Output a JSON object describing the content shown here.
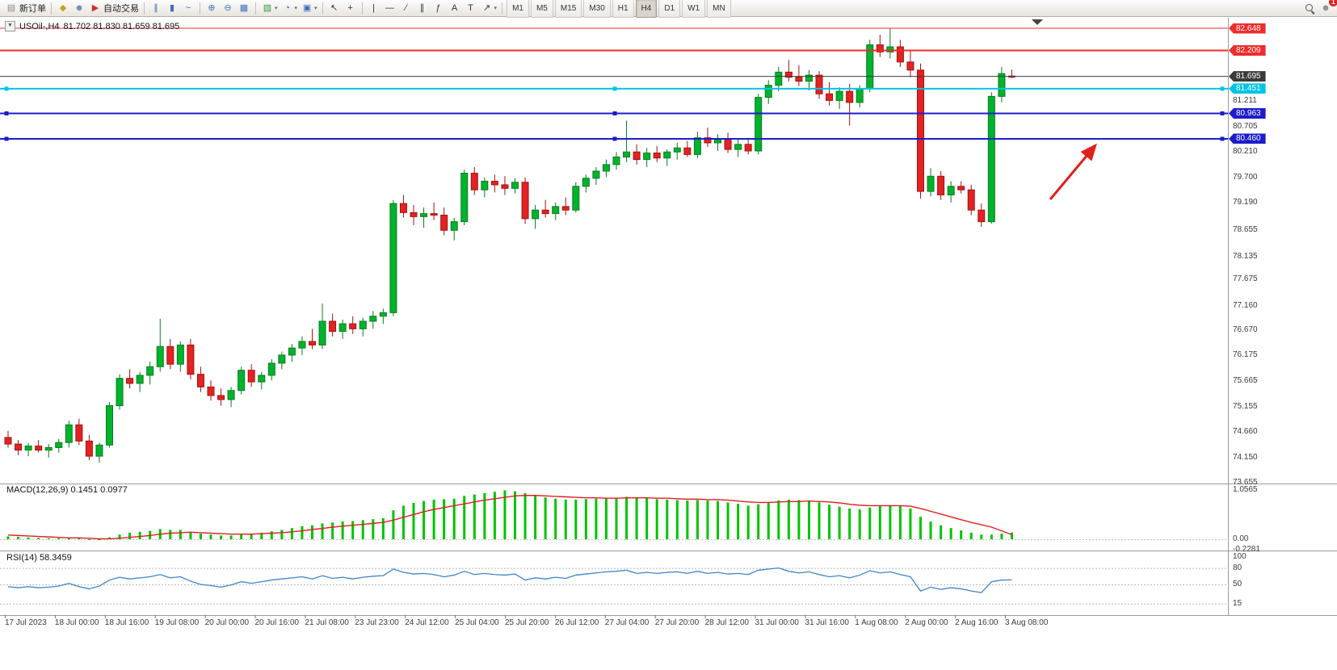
{
  "toolbar": {
    "active_timeframe": "H4",
    "items": [
      {
        "name": "new-order-button",
        "glyph": "▤",
        "color": "#8a8a8a",
        "label": "新订单"
      },
      {
        "sep": true
      },
      {
        "name": "market-watch-icon",
        "glyph": "◆",
        "color": "#c9a227"
      },
      {
        "name": "data-window-icon",
        "glyph": "☻",
        "color": "#6b86b5"
      },
      {
        "name": "auto-trading-button",
        "glyph": "▶",
        "color": "#d22a2a",
        "label": "自动交易"
      },
      {
        "sep": true
      },
      {
        "name": "bar-chart-type-icon",
        "glyph": "∥",
        "color": "#3f6fb5"
      },
      {
        "name": "candlestick-chart-type-icon",
        "glyph": "▮",
        "color": "#3f6fb5"
      },
      {
        "name": "line-chart-type-icon",
        "glyph": "~",
        "color": "#3f6fb5"
      },
      {
        "sep": true
      },
      {
        "name": "zoom-in-icon",
        "glyph": "⊕",
        "color": "#3f6fb5"
      },
      {
        "name": "zoom-out-icon",
        "glyph": "⊖",
        "color": "#3f6fb5"
      },
      {
        "name": "tile-windows-icon",
        "glyph": "▦",
        "color": "#3f6fb5"
      },
      {
        "sep": true
      },
      {
        "name": "new-chart-icon",
        "glyph": "▧",
        "color": "#3a9a3a",
        "caret": true
      },
      {
        "name": "templates-icon",
        "glyph": "◔",
        "color": "#3f6fb5",
        "caret": true
      },
      {
        "name": "picture-icon",
        "glyph": "▣",
        "color": "#3f6fb5",
        "caret": true
      },
      {
        "sep": true
      },
      {
        "name": "cursor-icon",
        "glyph": "↖",
        "color": "#333333"
      },
      {
        "name": "crosshair-icon",
        "glyph": "+",
        "color": "#333333"
      },
      {
        "sep": true
      },
      {
        "name": "vertical-line-icon",
        "glyph": "|",
        "color": "#333333"
      },
      {
        "name": "horizontal-line-icon",
        "glyph": "—",
        "color": "#333333"
      },
      {
        "name": "trendline-icon",
        "glyph": "∕",
        "color": "#333333"
      },
      {
        "name": "equidistant-channel-icon",
        "glyph": "∥",
        "color": "#333333"
      },
      {
        "name": "fibonacci-icon",
        "glyph": "ƒ",
        "color": "#333333"
      },
      {
        "name": "text-icon",
        "glyph": "A",
        "color": "#333333"
      },
      {
        "name": "label-icon",
        "glyph": "T",
        "color": "#333333"
      },
      {
        "name": "arrows-icon",
        "glyph": "↗",
        "color": "#333333",
        "caret": true
      },
      {
        "sep": true
      },
      {
        "name": "timeframe-m1",
        "tf": "M1"
      },
      {
        "name": "timeframe-m5",
        "tf": "M5"
      },
      {
        "name": "timeframe-m15",
        "tf": "M15"
      },
      {
        "name": "timeframe-m30",
        "tf": "M30"
      },
      {
        "name": "timeframe-h1",
        "tf": "H1"
      },
      {
        "name": "timeframe-h4",
        "tf": "H4"
      },
      {
        "name": "timeframe-d1",
        "tf": "D1"
      },
      {
        "name": "timeframe-w1",
        "tf": "W1"
      },
      {
        "name": "timeframe-mn",
        "tf": "MN"
      },
      {
        "spacer": true
      },
      {
        "name": "search-icon",
        "mag": true
      },
      {
        "name": "notifications-icon",
        "glyph": "☻",
        "color": "#8a8a8a",
        "badge": "1"
      }
    ]
  },
  "chart": {
    "collapse_glyph": "▼",
    "title": "USOil-,H4",
    "ohlc": "81.702 81.830 81.659 81.695",
    "macd_label": "MACD(12,26,9) 0.1451 0.0977",
    "rsi_label": "RSI(14) 58.3459"
  },
  "levels": [
    {
      "price": 82.648,
      "color": "#ee2c2c",
      "width": 1
    },
    {
      "price": 82.209,
      "color": "#ee2c2c",
      "width": 2
    },
    {
      "price": 81.695,
      "color": "#3a3a3a",
      "width": 1
    },
    {
      "price": 81.451,
      "color": "#00c4e6",
      "width": 2,
      "handles": true
    },
    {
      "price": 80.963,
      "color": "#1c1ccc",
      "width": 2,
      "handles": true
    },
    {
      "price": 80.46,
      "color": "#1c1ccc",
      "width": 2,
      "handles": true
    }
  ],
  "price_axis": {
    "ticks": [
      "81.211",
      "80.705",
      "80.210",
      "79.700",
      "79.190",
      "78.655",
      "78.135",
      "77.675",
      "77.160",
      "76.670",
      "76.175",
      "75.665",
      "75.155",
      "74.660",
      "74.150",
      "73.655"
    ]
  },
  "chart_data": {
    "type": "candlestick",
    "symbol": "USOil-",
    "timeframe": "H4",
    "last_candle": {
      "open": 81.702,
      "high": 81.83,
      "low": 81.659,
      "close": 81.695
    },
    "x_labels": [
      "17 Jul 2023",
      "18 Jul 00:00",
      "18 Jul 16:00",
      "19 Jul 08:00",
      "20 Jul 00:00",
      "20 Jul 16:00",
      "21 Jul 08:00",
      "23 Jul 23:00",
      "24 Jul 12:00",
      "25 Jul 04:00",
      "25 Jul 20:00",
      "26 Jul 12:00",
      "27 Jul 04:00",
      "27 Jul 20:00",
      "28 Jul 12:00",
      "31 Jul 00:00",
      "31 Jul 16:00",
      "1 Aug 08:00",
      "2 Aug 00:00",
      "2 Aug 16:00",
      "3 Aug 08:00"
    ],
    "candles": [
      [
        74.55,
        74.68,
        74.35,
        74.42
      ],
      [
        74.42,
        74.5,
        74.2,
        74.3
      ],
      [
        74.3,
        74.44,
        74.18,
        74.38
      ],
      [
        74.38,
        74.5,
        74.25,
        74.3
      ],
      [
        74.3,
        74.42,
        74.15,
        74.35
      ],
      [
        74.35,
        74.52,
        74.25,
        74.45
      ],
      [
        74.45,
        74.88,
        74.35,
        74.8
      ],
      [
        74.8,
        74.92,
        74.4,
        74.48
      ],
      [
        74.48,
        74.6,
        74.1,
        74.18
      ],
      [
        74.18,
        74.45,
        74.05,
        74.4
      ],
      [
        74.4,
        75.25,
        74.35,
        75.18
      ],
      [
        75.18,
        75.8,
        75.1,
        75.72
      ],
      [
        75.72,
        75.9,
        75.52,
        75.62
      ],
      [
        75.62,
        75.85,
        75.45,
        75.78
      ],
      [
        75.78,
        76.05,
        75.6,
        75.95
      ],
      [
        75.95,
        76.9,
        75.85,
        76.35
      ],
      [
        76.35,
        76.5,
        75.9,
        76.0
      ],
      [
        76.0,
        76.45,
        75.85,
        76.38
      ],
      [
        76.38,
        76.5,
        75.7,
        75.8
      ],
      [
        75.8,
        75.95,
        75.45,
        75.55
      ],
      [
        75.55,
        75.68,
        75.28,
        75.38
      ],
      [
        75.38,
        75.52,
        75.18,
        75.3
      ],
      [
        75.3,
        75.55,
        75.15,
        75.48
      ],
      [
        75.48,
        75.95,
        75.4,
        75.88
      ],
      [
        75.88,
        76.0,
        75.55,
        75.65
      ],
      [
        75.65,
        75.85,
        75.5,
        75.78
      ],
      [
        75.78,
        76.1,
        75.68,
        76.02
      ],
      [
        76.02,
        76.25,
        75.9,
        76.18
      ],
      [
        76.18,
        76.4,
        76.05,
        76.32
      ],
      [
        76.32,
        76.55,
        76.18,
        76.45
      ],
      [
        76.45,
        76.7,
        76.3,
        76.38
      ],
      [
        76.38,
        77.2,
        76.3,
        76.85
      ],
      [
        76.85,
        77.0,
        76.55,
        76.65
      ],
      [
        76.65,
        76.88,
        76.5,
        76.8
      ],
      [
        76.8,
        76.95,
        76.6,
        76.7
      ],
      [
        76.7,
        76.92,
        76.55,
        76.85
      ],
      [
        76.85,
        77.05,
        76.7,
        76.95
      ],
      [
        76.95,
        77.1,
        76.8,
        77.02
      ],
      [
        77.02,
        79.25,
        76.95,
        79.18
      ],
      [
        79.18,
        79.35,
        78.9,
        79.0
      ],
      [
        79.0,
        79.15,
        78.75,
        78.92
      ],
      [
        78.92,
        79.1,
        78.7,
        78.98
      ],
      [
        78.98,
        79.2,
        78.85,
        78.95
      ],
      [
        78.95,
        79.1,
        78.55,
        78.65
      ],
      [
        78.65,
        78.9,
        78.45,
        78.82
      ],
      [
        78.82,
        79.85,
        78.75,
        79.78
      ],
      [
        79.78,
        79.9,
        79.35,
        79.45
      ],
      [
        79.45,
        79.7,
        79.3,
        79.62
      ],
      [
        79.62,
        79.75,
        79.4,
        79.55
      ],
      [
        79.55,
        79.72,
        79.35,
        79.48
      ],
      [
        79.48,
        79.68,
        79.38,
        79.6
      ],
      [
        79.6,
        79.7,
        78.78,
        78.88
      ],
      [
        78.88,
        79.15,
        78.68,
        79.05
      ],
      [
        79.05,
        79.25,
        78.9,
        78.98
      ],
      [
        78.98,
        79.2,
        78.85,
        79.12
      ],
      [
        79.12,
        79.3,
        78.95,
        79.05
      ],
      [
        79.05,
        79.6,
        79.0,
        79.52
      ],
      [
        79.52,
        79.75,
        79.4,
        79.68
      ],
      [
        79.68,
        79.9,
        79.55,
        79.82
      ],
      [
        79.82,
        80.05,
        79.7,
        79.95
      ],
      [
        79.95,
        80.2,
        79.85,
        80.1
      ],
      [
        80.1,
        80.82,
        80.0,
        80.2
      ],
      [
        80.2,
        80.35,
        79.95,
        80.05
      ],
      [
        80.05,
        80.28,
        79.9,
        80.18
      ],
      [
        80.18,
        80.32,
        80.0,
        80.08
      ],
      [
        80.08,
        80.25,
        79.92,
        80.2
      ],
      [
        80.2,
        80.38,
        80.05,
        80.28
      ],
      [
        80.28,
        80.42,
        80.1,
        80.15
      ],
      [
        80.15,
        80.6,
        80.08,
        80.48
      ],
      [
        80.48,
        80.68,
        80.3,
        80.38
      ],
      [
        80.38,
        80.55,
        80.22,
        80.45
      ],
      [
        80.45,
        80.58,
        80.18,
        80.25
      ],
      [
        80.25,
        80.45,
        80.1,
        80.35
      ],
      [
        80.35,
        80.48,
        80.15,
        80.22
      ],
      [
        80.22,
        81.35,
        80.15,
        81.28
      ],
      [
        81.28,
        81.62,
        81.15,
        81.52
      ],
      [
        81.52,
        81.88,
        81.4,
        81.78
      ],
      [
        81.78,
        82.02,
        81.6,
        81.68
      ],
      [
        81.68,
        81.92,
        81.5,
        81.6
      ],
      [
        81.6,
        81.82,
        81.42,
        81.72
      ],
      [
        81.72,
        81.8,
        81.25,
        81.35
      ],
      [
        81.35,
        81.58,
        81.12,
        81.22
      ],
      [
        81.22,
        81.48,
        81.05,
        81.4
      ],
      [
        81.4,
        81.55,
        80.72,
        81.18
      ],
      [
        81.18,
        81.52,
        81.08,
        81.45
      ],
      [
        81.45,
        82.42,
        81.38,
        82.32
      ],
      [
        82.32,
        82.52,
        82.08,
        82.18
      ],
      [
        82.18,
        82.65,
        82.05,
        82.28
      ],
      [
        82.28,
        82.42,
        81.88,
        81.98
      ],
      [
        81.98,
        82.2,
        81.68,
        81.82
      ],
      [
        81.82,
        81.95,
        79.28,
        79.42
      ],
      [
        79.42,
        79.88,
        79.32,
        79.72
      ],
      [
        79.72,
        79.82,
        79.25,
        79.35
      ],
      [
        79.35,
        79.62,
        79.2,
        79.52
      ],
      [
        79.52,
        79.62,
        79.38,
        79.45
      ],
      [
        79.45,
        79.55,
        78.95,
        79.05
      ],
      [
        79.05,
        79.18,
        78.72,
        78.82
      ],
      [
        78.82,
        81.38,
        78.78,
        81.3
      ],
      [
        81.3,
        81.88,
        81.18,
        81.75
      ],
      [
        81.702,
        81.83,
        81.659,
        81.695
      ]
    ],
    "macd": {
      "label": "MACD(12,26,9)",
      "main_value": 0.1451,
      "signal_value": 0.0977,
      "axis": [
        {
          "label": "1.0565",
          "v": 1.0565
        },
        {
          "label": "0.00",
          "v": 0
        },
        {
          "label": "-0.2281",
          "v": -0.2281
        }
      ],
      "hist": [
        0.06,
        0.05,
        0.04,
        0.03,
        0.02,
        0.02,
        0.03,
        0.02,
        -0.01,
        -0.02,
        0.04,
        0.1,
        0.14,
        0.16,
        0.18,
        0.22,
        0.2,
        0.2,
        0.16,
        0.12,
        0.1,
        0.08,
        0.08,
        0.1,
        0.12,
        0.14,
        0.17,
        0.2,
        0.24,
        0.28,
        0.3,
        0.34,
        0.36,
        0.38,
        0.39,
        0.41,
        0.43,
        0.45,
        0.62,
        0.72,
        0.78,
        0.82,
        0.85,
        0.86,
        0.87,
        0.93,
        0.96,
        0.99,
        1.02,
        1.05,
        1.03,
        0.99,
        0.94,
        0.9,
        0.87,
        0.85,
        0.85,
        0.86,
        0.87,
        0.88,
        0.89,
        0.91,
        0.89,
        0.88,
        0.86,
        0.85,
        0.84,
        0.83,
        0.84,
        0.83,
        0.82,
        0.79,
        0.76,
        0.72,
        0.75,
        0.79,
        0.83,
        0.85,
        0.84,
        0.83,
        0.79,
        0.74,
        0.7,
        0.66,
        0.64,
        0.68,
        0.71,
        0.73,
        0.71,
        0.66,
        0.48,
        0.38,
        0.3,
        0.24,
        0.19,
        0.14,
        0.1,
        0.1,
        0.12,
        0.1451
      ],
      "signal": [
        0.09,
        0.08,
        0.07,
        0.06,
        0.05,
        0.04,
        0.03,
        0.03,
        0.02,
        0.01,
        0.01,
        0.02,
        0.04,
        0.06,
        0.08,
        0.11,
        0.13,
        0.14,
        0.15,
        0.14,
        0.13,
        0.12,
        0.11,
        0.11,
        0.11,
        0.12,
        0.13,
        0.14,
        0.16,
        0.18,
        0.21,
        0.23,
        0.26,
        0.28,
        0.3,
        0.32,
        0.34,
        0.36,
        0.41,
        0.47,
        0.53,
        0.59,
        0.64,
        0.68,
        0.72,
        0.76,
        0.8,
        0.84,
        0.87,
        0.9,
        0.93,
        0.94,
        0.94,
        0.93,
        0.92,
        0.91,
        0.9,
        0.89,
        0.89,
        0.88,
        0.88,
        0.89,
        0.89,
        0.89,
        0.88,
        0.88,
        0.87,
        0.86,
        0.86,
        0.85,
        0.85,
        0.84,
        0.82,
        0.8,
        0.79,
        0.79,
        0.8,
        0.81,
        0.81,
        0.82,
        0.81,
        0.8,
        0.78,
        0.75,
        0.73,
        0.72,
        0.72,
        0.72,
        0.72,
        0.71,
        0.66,
        0.6,
        0.54,
        0.48,
        0.42,
        0.36,
        0.31,
        0.26,
        0.18,
        0.0977
      ]
    },
    "rsi": {
      "label": "RSI(14)",
      "value": 58.3459,
      "axis": [
        {
          "label": "100",
          "v": 100
        },
        {
          "label": "80",
          "v": 80,
          "dashed": true
        },
        {
          "label": "50",
          "v": 50,
          "dashed": true
        },
        {
          "label": "15",
          "v": 15,
          "dashed": true
        }
      ],
      "series": [
        46,
        44,
        46,
        44,
        45,
        47,
        52,
        46,
        42,
        47,
        58,
        63,
        60,
        62,
        64,
        68,
        62,
        64,
        56,
        50,
        48,
        45,
        49,
        55,
        52,
        55,
        58,
        60,
        62,
        64,
        60,
        66,
        61,
        63,
        60,
        63,
        65,
        66,
        78,
        72,
        69,
        70,
        68,
        64,
        67,
        74,
        68,
        70,
        68,
        67,
        69,
        58,
        62,
        60,
        63,
        61,
        67,
        69,
        71,
        73,
        74,
        76,
        70,
        72,
        70,
        72,
        73,
        70,
        74,
        70,
        72,
        69,
        70,
        68,
        76,
        78,
        80,
        74,
        71,
        73,
        68,
        64,
        66,
        62,
        67,
        75,
        71,
        73,
        68,
        64,
        38,
        45,
        41,
        44,
        42,
        38,
        35,
        55,
        58,
        58.3
      ]
    }
  }
}
